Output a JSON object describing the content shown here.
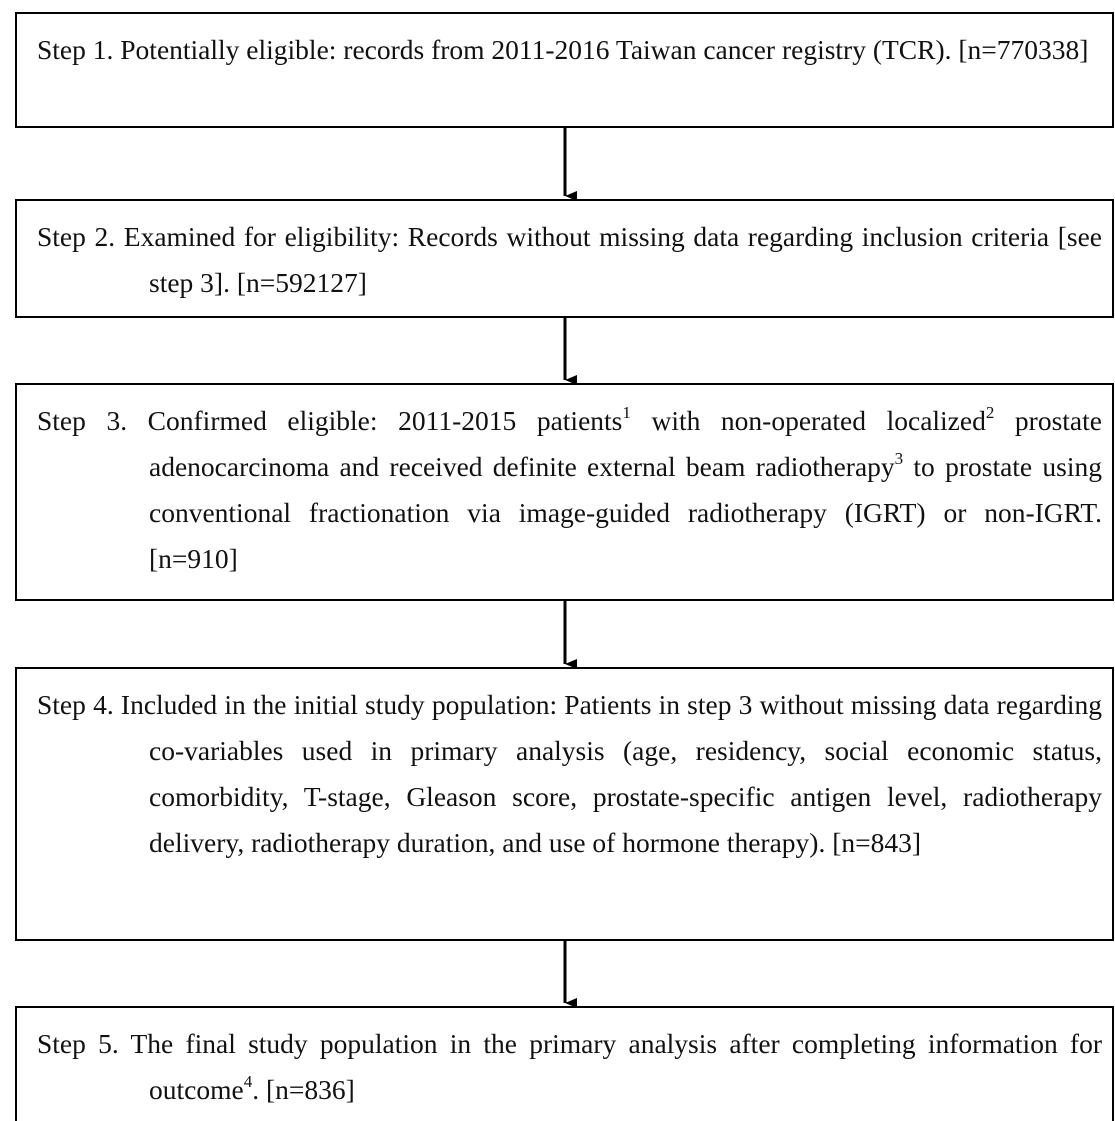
{
  "steps": [
    {
      "parts": [
        "Step 1. Potentially eligible: records from 2011-2016 Taiwan cancer registry (TCR). [n=770338]"
      ]
    },
    {
      "parts": [
        "Step 2. Examined for eligibility: Records without missing data regarding inclusion criteria [see step 3]. [n=592127]"
      ]
    },
    {
      "parts": [
        "Step 3. Confirmed eligible: 2011-2015 patients",
        "1",
        " with non-operated localized",
        "2",
        " prostate adenocarcinoma and received definite external beam radiotherapy",
        "3",
        " to prostate using conventional fractionation via image-guided radiotherapy (IGRT) or non-IGRT. [n=910]"
      ]
    },
    {
      "parts": [
        "Step 4. Included in the initial study population: Patients in step 3 without missing data regarding co-variables used in primary analysis (age, residency, social economic status, comorbidity, T-stage, Gleason score, prostate-specific antigen level, radiotherapy delivery, radiotherapy duration, and use of hormone therapy). [n=843]"
      ]
    },
    {
      "parts": [
        "Step 5. The final study population in the primary analysis after completing information for outcome",
        "4",
        ". [n=836]"
      ]
    }
  ]
}
